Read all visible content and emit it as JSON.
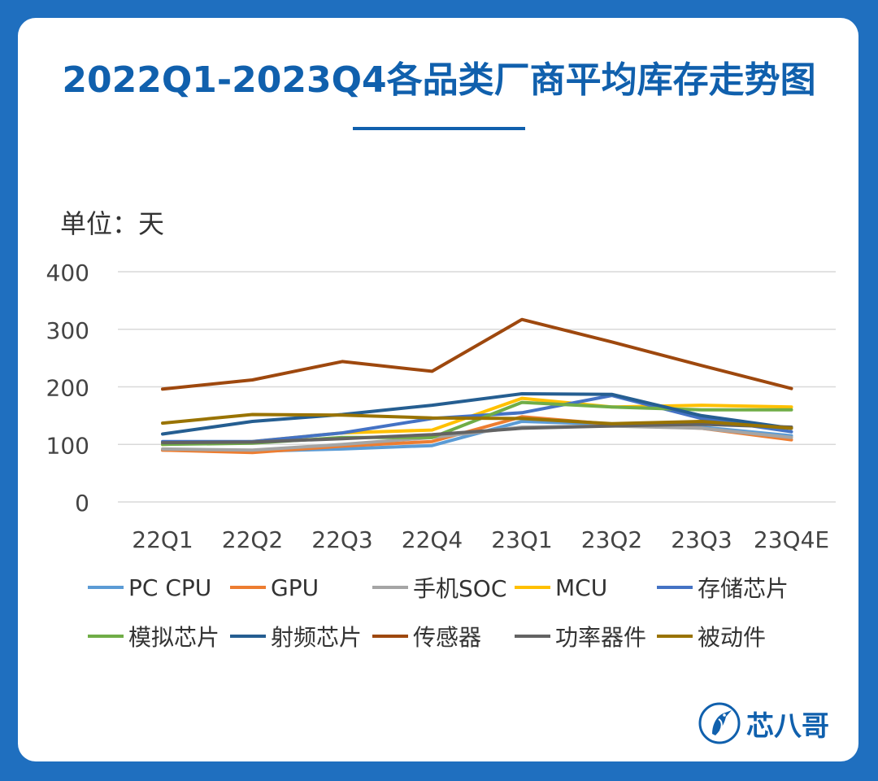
{
  "title": "2022Q1-2023Q4各品类厂商平均库存走势图",
  "unit_label": "单位：天",
  "brand": {
    "name": "芯八哥",
    "logo_icon": "kingfisher-bird-icon"
  },
  "chart_data": {
    "type": "line",
    "title": "2022Q1-2023Q4各品类厂商平均库存走势图",
    "ylabel": "单位：天",
    "xlabel": "",
    "categories": [
      "22Q1",
      "22Q2",
      "22Q3",
      "22Q4",
      "23Q1",
      "23Q2",
      "23Q3",
      "23Q4E"
    ],
    "ylim": [
      0,
      400
    ],
    "yticks": [
      0,
      100,
      200,
      300,
      400
    ],
    "grid": true,
    "legend_position": "bottom",
    "series": [
      {
        "name": "PC CPU",
        "color": "#5b9bd5",
        "values": [
          90,
          88,
          92,
          98,
          140,
          135,
          130,
          115
        ]
      },
      {
        "name": "GPU",
        "color": "#ed7d31",
        "values": [
          90,
          86,
          97,
          105,
          148,
          135,
          128,
          108
        ]
      },
      {
        "name": "手机SOC",
        "color": "#a5a5a5",
        "values": [
          92,
          90,
          100,
          112,
          130,
          132,
          128,
          112
        ]
      },
      {
        "name": "MCU",
        "color": "#ffc000",
        "values": [
          100,
          105,
          120,
          125,
          180,
          165,
          168,
          165
        ]
      },
      {
        "name": "存储芯片",
        "color": "#4472c4",
        "values": [
          105,
          105,
          120,
          145,
          155,
          185,
          145,
          122
        ]
      },
      {
        "name": "模拟芯片",
        "color": "#70ad47",
        "values": [
          100,
          102,
          112,
          112,
          173,
          165,
          160,
          160
        ]
      },
      {
        "name": "射频芯片",
        "color": "#255e91",
        "values": [
          118,
          140,
          152,
          168,
          188,
          187,
          150,
          128
        ]
      },
      {
        "name": "传感器",
        "color": "#9e480e",
        "values": [
          196,
          212,
          244,
          227,
          317,
          278,
          237,
          197
        ]
      },
      {
        "name": "功率器件",
        "color": "#636363",
        "values": [
          103,
          104,
          110,
          117,
          128,
          132,
          135,
          130
        ]
      },
      {
        "name": "被动件",
        "color": "#997300",
        "values": [
          137,
          152,
          151,
          146,
          145,
          136,
          140,
          128
        ]
      }
    ]
  }
}
